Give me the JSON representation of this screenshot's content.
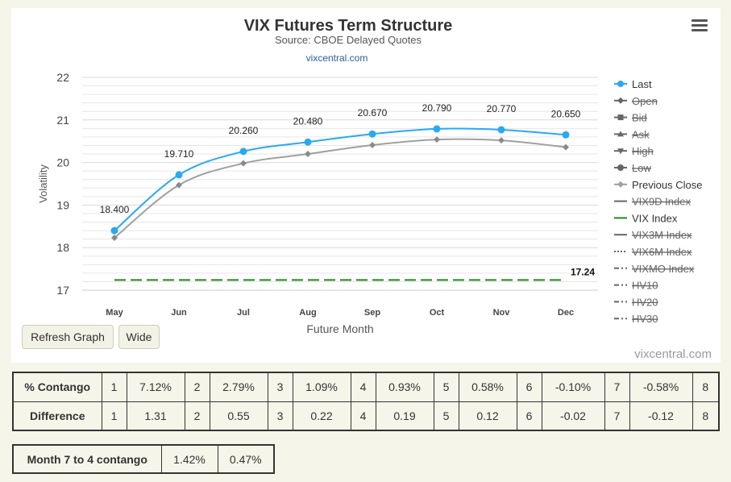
{
  "title": "VIX Futures Term Structure",
  "subtitle": "Source: CBOE Delayed Quotes",
  "source_link": "vixcentral.com",
  "credits": "vixcentral.com",
  "colors": {
    "last": "#2aa9ee",
    "previous_close": "#a0a0a0",
    "vix_index": "#1a8a1a",
    "disabled_legend": "#777777",
    "grid": "#e6e6e6"
  },
  "buttons": {
    "refresh": "Refresh Graph",
    "wide": "Wide"
  },
  "chart_data": {
    "type": "line",
    "title": "VIX Futures Term Structure",
    "subtitle": "Source: CBOE Delayed Quotes",
    "xlabel": "Future Month",
    "ylabel": "Volatility",
    "categories": [
      "May",
      "Jun",
      "Jul",
      "Aug",
      "Sep",
      "Oct",
      "Nov",
      "Dec"
    ],
    "ylim": [
      17,
      22
    ],
    "yticks": [
      "17",
      "18",
      "19",
      "20",
      "21",
      "22"
    ],
    "grid": true,
    "legend_position": "right",
    "series": [
      {
        "name": "Last",
        "values": [
          18.4,
          19.71,
          20.26,
          20.48,
          20.67,
          20.79,
          20.77,
          20.65
        ],
        "labels": [
          "18.400",
          "19.710",
          "20.260",
          "20.480",
          "20.670",
          "20.790",
          "20.770",
          "20.650"
        ]
      },
      {
        "name": "Previous Close",
        "values": [
          18.23,
          19.47,
          19.98,
          20.2,
          20.41,
          20.54,
          20.52,
          20.36
        ]
      },
      {
        "name": "VIX Index",
        "values": [
          17.24,
          17.24,
          17.24,
          17.24,
          17.24,
          17.24,
          17.24,
          17.24
        ],
        "end_label": "17.24"
      }
    ],
    "legend": [
      {
        "name": "Last",
        "symbol": "line-circle",
        "active": true
      },
      {
        "name": "Open",
        "symbol": "line-diamond",
        "active": false
      },
      {
        "name": "Bid",
        "symbol": "line-square",
        "active": false
      },
      {
        "name": "Ask",
        "symbol": "line-triangle",
        "active": false
      },
      {
        "name": "High",
        "symbol": "line-triangle-down",
        "active": false
      },
      {
        "name": "Low",
        "symbol": "line-circle",
        "active": false
      },
      {
        "name": "Previous Close",
        "symbol": "line-diamond",
        "active": true
      },
      {
        "name": "VIX9D Index",
        "symbol": "line",
        "active": false
      },
      {
        "name": "VIX Index",
        "symbol": "line",
        "active": true
      },
      {
        "name": "VIX3M Index",
        "symbol": "line",
        "active": false
      },
      {
        "name": "VIX6M Index",
        "symbol": "dotted",
        "active": false
      },
      {
        "name": "VIXMO Index",
        "symbol": "dash-dot",
        "active": false
      },
      {
        "name": "HV10",
        "symbol": "dash-dot",
        "active": false
      },
      {
        "name": "HV20",
        "symbol": "dash-dot",
        "active": false
      },
      {
        "name": "HV30",
        "symbol": "dash-dot",
        "active": false
      }
    ]
  },
  "contango_table": {
    "rows": [
      {
        "label": "% Contango",
        "cells": [
          "1",
          "7.12%",
          "2",
          "2.79%",
          "3",
          "1.09%",
          "4",
          "0.93%",
          "5",
          "0.58%",
          "6",
          "-0.10%",
          "7",
          "-0.58%",
          "8"
        ]
      },
      {
        "label": "Difference",
        "cells": [
          "1",
          "1.31",
          "2",
          "0.55",
          "3",
          "0.22",
          "4",
          "0.19",
          "5",
          "0.12",
          "6",
          "-0.02",
          "7",
          "-0.12",
          "8"
        ]
      }
    ]
  },
  "month_table": {
    "label": "Month 7 to 4 contango",
    "values": [
      "1.42%",
      "0.47%"
    ]
  }
}
